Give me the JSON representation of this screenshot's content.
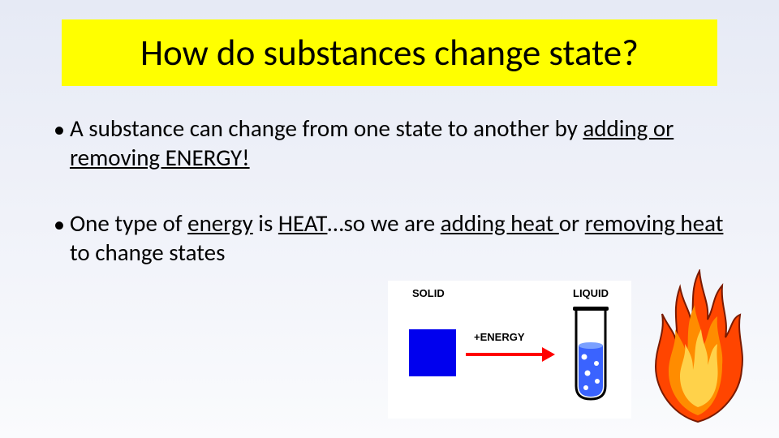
{
  "title": "How do substances change state?",
  "bullets": [
    {
      "prefix": "A substance can change from one state to another by ",
      "underlined": "adding or removing ENERGY! "
    },
    {
      "parts": [
        {
          "t": "One type of ",
          "u": false
        },
        {
          "t": "energy",
          "u": true
        },
        {
          "t": " is ",
          "u": false
        },
        {
          "t": "HEAT",
          "u": true
        },
        {
          "t": "…so we are ",
          "u": false
        },
        {
          "t": "adding heat ",
          "u": true
        },
        {
          "t": "or ",
          "u": false
        },
        {
          "t": "removing heat ",
          "u": true
        },
        {
          "t": "to change states",
          "u": false
        }
      ]
    }
  ],
  "diagram": {
    "solid_label": "SOLID",
    "liquid_label": "LIQUID",
    "energy_label": "+ENERGY",
    "colors": {
      "solid_fill": "#0000ee",
      "arrow": "#ff0000",
      "tube_outline": "#000000",
      "tube_liquid": "#3a63ff",
      "tube_liquid_light": "#7aa0ff",
      "bubble": "#ffffff",
      "flame_outer": "#ff4500",
      "flame_mid": "#ff8c00",
      "flame_inner": "#ffd24a",
      "background": "#ffffff"
    }
  },
  "style": {
    "title_bg": "#ffff00",
    "title_fontsize": 45,
    "body_fontsize": 29,
    "slide_gradient_top": "#e6eaf5",
    "slide_gradient_bottom": "#fafbfd"
  }
}
